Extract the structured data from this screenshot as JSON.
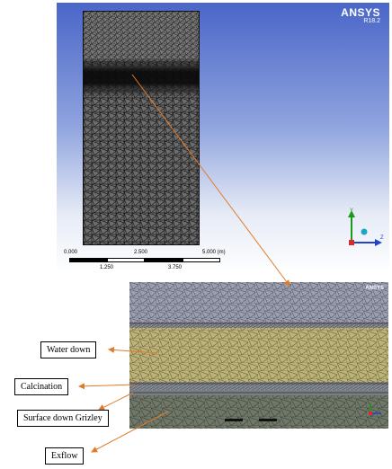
{
  "viewport": {
    "brand": "ANSYS",
    "version": "R18.2",
    "scale_bar": {
      "top_ticks": [
        "0.000",
        "2.500",
        "5.000 (m)"
      ],
      "bottom_ticks": [
        "1.250",
        "3.750"
      ]
    },
    "axes": {
      "y": "Y",
      "z": "Z"
    }
  },
  "inset": {
    "brand": "ANSYS",
    "layers": [
      "Water down",
      "Calcination",
      "Surface down Grizley",
      "Exflow"
    ]
  },
  "labels": {
    "water_down": "Water down",
    "calcination": "Calcination",
    "surface_down": "Surface down Grizley",
    "exflow": "Exflow"
  },
  "colors": {
    "arrow": "#e07b2a",
    "viewport_top": "#4a66c8",
    "mesh_dark": "#1a1a1a",
    "water_layer": "#b7ae6b",
    "lower_layer": "#6b7365"
  }
}
